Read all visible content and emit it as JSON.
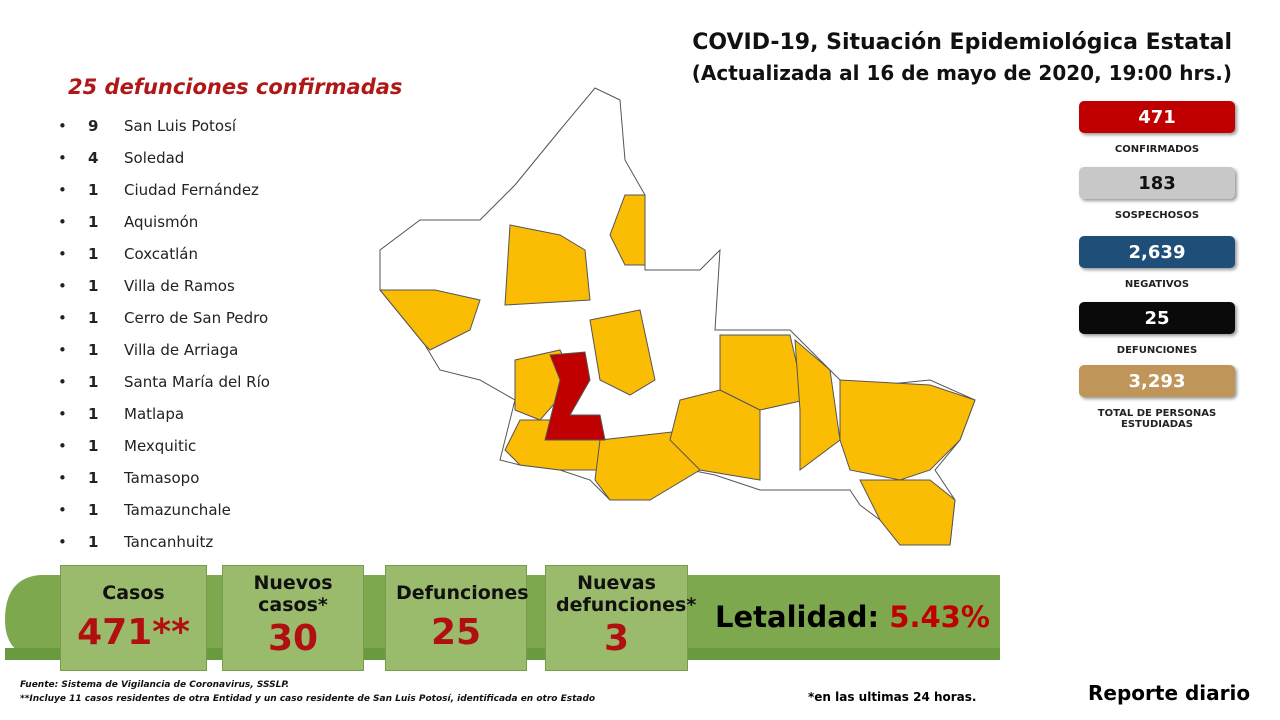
{
  "header": {
    "title": "COVID-19, Situación Epidemiológica Estatal",
    "subtitle": "(Actualizada al 16 de mayo de 2020, 19:00 hrs.)"
  },
  "deaths": {
    "heading": "25 defunciones confirmadas",
    "items": [
      {
        "count": 9,
        "name": "San Luis Potosí"
      },
      {
        "count": 4,
        "name": "Soledad"
      },
      {
        "count": 1,
        "name": "Ciudad Fernández"
      },
      {
        "count": 1,
        "name": "Aquismón"
      },
      {
        "count": 1,
        "name": "Coxcatlán"
      },
      {
        "count": 1,
        "name": "Villa de Ramos"
      },
      {
        "count": 1,
        "name": "Cerro de San Pedro"
      },
      {
        "count": 1,
        "name": "Villa de Arriaga"
      },
      {
        "count": 1,
        "name": "Santa María del Río"
      },
      {
        "count": 1,
        "name": "Matlapa"
      },
      {
        "count": 1,
        "name": "Mexquitic"
      },
      {
        "count": 1,
        "name": "Tamasopo"
      },
      {
        "count": 1,
        "name": "Tamazunchale"
      },
      {
        "count": 1,
        "name": "Tancanhuitz"
      }
    ]
  },
  "stats": [
    {
      "value": "471",
      "label": "CONFIRMADOS"
    },
    {
      "value": "183",
      "label": "SOSPECHOSOS"
    },
    {
      "value": "2,639",
      "label": "NEGATIVOS"
    },
    {
      "value": "25",
      "label": "DEFUNCIONES"
    },
    {
      "value": "3,293",
      "label": "TOTAL DE PERSONAS ESTUDIADAS"
    }
  ],
  "panels": [
    {
      "label": "Casos",
      "value": "471**"
    },
    {
      "label": "Nuevos casos*",
      "value": "30"
    },
    {
      "label": "Defunciones",
      "value": "25"
    },
    {
      "label": "Nuevas defunciones*",
      "value": "3"
    }
  ],
  "letalidad": {
    "label": "Letalidad:",
    "value": "5.43%"
  },
  "footer": {
    "source": "Fuente: Sistema de Vigilancia de Coronavirus, SSSLP.",
    "note": "**Incluye 11 casos residentes de otra Entidad y un caso residente de San Luis Potosí, identificada en otro Estado",
    "footnote": "*en las ultimas 24 horas.",
    "report": "Reporte diario"
  }
}
